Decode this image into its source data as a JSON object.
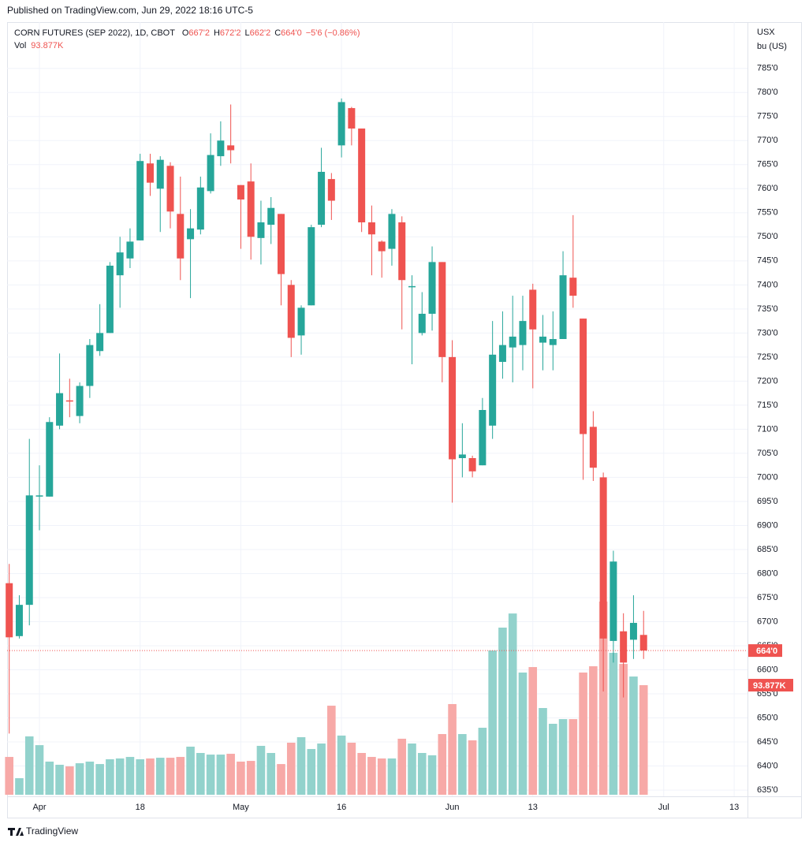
{
  "published": "Published on TradingView.com, Jun 29, 2022 18:16 UTC-5",
  "footer": "TradingView",
  "chart_data": {
    "type": "candlestick",
    "title": "CORN FUTURES (SEP 2022), 1D, CBOT",
    "ohlc_labels": [
      {
        "key": "O",
        "value": "667'2"
      },
      {
        "key": "H",
        "value": "672'2"
      },
      {
        "key": "L",
        "value": "662'2"
      },
      {
        "key": "C",
        "value": "664'0"
      }
    ],
    "change": "−5'6 (−0.86%)",
    "currency": "USX",
    "unit": "bu (US)",
    "last_price_label": "664'0",
    "up_color": "#26a69a",
    "down_color": "#ef5350",
    "up_volume_color": "#92d2cc",
    "down_volume_color": "#f7a9a7",
    "categories": [
      null,
      null,
      null,
      "Apr",
      null,
      null,
      null,
      null,
      null,
      null,
      null,
      null,
      null,
      "18",
      null,
      null,
      null,
      null,
      null,
      null,
      null,
      null,
      null,
      "May",
      null,
      null,
      null,
      null,
      null,
      null,
      null,
      null,
      null,
      "16",
      null,
      null,
      null,
      null,
      null,
      null,
      null,
      null,
      null,
      null,
      "Jun",
      null,
      null,
      null,
      null,
      null,
      null,
      null,
      "13",
      null,
      null,
      null,
      null,
      null,
      null,
      null,
      null,
      null,
      null,
      null,
      null,
      "Jul",
      null,
      null,
      null,
      null,
      null,
      null,
      "13",
      null
    ],
    "open": [
      678,
      667,
      673.5,
      696,
      696,
      710.75,
      716,
      712.75,
      719,
      726.25,
      730,
      742,
      745.5,
      749.25,
      765.25,
      760,
      764.75,
      754.75,
      749.5,
      751.5,
      759.5,
      766.75,
      769,
      760.75,
      761.5,
      749.75,
      752.5,
      754.75,
      740,
      729.5,
      735.75,
      752.5,
      762,
      769,
      776.75,
      772.5,
      753,
      749,
      747.5,
      753,
      739.5,
      730,
      734,
      744.75,
      725,
      704,
      704,
      702.5,
      710.75,
      724,
      727,
      727.5,
      739,
      728,
      727.5,
      728.75,
      741.5,
      733,
      710.5,
      700,
      666,
      668,
      666.25,
      667.25,
      null,
      null,
      null,
      null,
      null,
      null,
      null,
      null,
      null,
      null
    ],
    "high": [
      682,
      675.5,
      708,
      702.5,
      712.5,
      725.75,
      720.5,
      719.75,
      728.75,
      736,
      744.75,
      750,
      751.75,
      767.25,
      767.25,
      766.75,
      765.5,
      762.5,
      755.75,
      762.5,
      771.5,
      774,
      777.5,
      760.75,
      765.25,
      757.5,
      758.25,
      754.75,
      741,
      735.75,
      752.5,
      768.5,
      763.25,
      778.75,
      777,
      772.5,
      756.5,
      749.25,
      755.75,
      754.25,
      742,
      738.5,
      748,
      744.75,
      728.5,
      711.25,
      704.5,
      716.5,
      732.5,
      734.5,
      737.75,
      737.75,
      740.25,
      733.75,
      734.5,
      747,
      754.5,
      733,
      713.75,
      701,
      684.75,
      671.75,
      675.5,
      672.25,
      null,
      null,
      null,
      null,
      null,
      null,
      null,
      null,
      null,
      null
    ],
    "low": [
      646.75,
      666.5,
      669.25,
      689,
      696,
      710,
      712.5,
      711.25,
      716.5,
      725.25,
      730,
      735.25,
      743.5,
      749.25,
      758.5,
      751,
      751.75,
      741,
      737.25,
      750.5,
      759,
      764.75,
      765.25,
      747.5,
      745.25,
      744.25,
      748.5,
      735.75,
      725,
      725.5,
      735.75,
      752,
      753.5,
      766.5,
      769,
      751,
      742,
      741.5,
      744,
      730.75,
      723.5,
      729.5,
      730.5,
      719.75,
      694.75,
      700,
      700,
      702.5,
      708,
      720.5,
      719.75,
      722.25,
      718.5,
      722.25,
      722.25,
      728.75,
      735.25,
      699.5,
      699.25,
      655.5,
      661.5,
      654.25,
      662.25,
      662.25,
      null,
      null,
      null,
      null,
      null,
      null,
      null,
      null,
      null,
      null
    ],
    "close": [
      666.75,
      673.5,
      696.25,
      696.25,
      711.5,
      717.5,
      715.75,
      719,
      727.5,
      730,
      744,
      746.75,
      749,
      765.75,
      761.25,
      766,
      755.25,
      745.5,
      751.75,
      760.25,
      767,
      770,
      768,
      757.75,
      750,
      753,
      756,
      742.25,
      729,
      735.25,
      752,
      763.5,
      757.5,
      778,
      772.5,
      753,
      750.5,
      747,
      754.75,
      741,
      739.75,
      734,
      744.75,
      725,
      703.75,
      704.75,
      701.25,
      714,
      725.5,
      727.5,
      729.25,
      732.5,
      730.75,
      729.25,
      728.75,
      742,
      737.75,
      709,
      702,
      666.5,
      682.5,
      661.5,
      669.75,
      664,
      null,
      null,
      null,
      null,
      null,
      null,
      null,
      null,
      null,
      null
    ],
    "volume": {
      "name": "Vol",
      "values": [
        32400,
        14200,
        50000,
        42500,
        28400,
        25700,
        24300,
        27000,
        28400,
        26300,
        30400,
        31100,
        32400,
        30400,
        31100,
        31700,
        31700,
        32400,
        41200,
        35800,
        34400,
        34400,
        35100,
        28400,
        29000,
        41900,
        35800,
        26300,
        44600,
        49300,
        39200,
        43900,
        76300,
        50700,
        44600,
        35800,
        32400,
        31100,
        31100,
        48000,
        43900,
        35800,
        33800,
        52000,
        77700,
        52000,
        46600,
        57400,
        123600,
        143200,
        155300,
        104700,
        109400,
        74300,
        60800,
        64800,
        64800,
        104700,
        110100,
        165500,
        121600,
        112100,
        101300,
        93877,
        null,
        null,
        null,
        null,
        null,
        null,
        null,
        null,
        null,
        null
      ],
      "value_labels": [
        null,
        null,
        null,
        null,
        null,
        null,
        null,
        null,
        null,
        null,
        null,
        null,
        null,
        null,
        null,
        null,
        null,
        null,
        null,
        null,
        null,
        null,
        null,
        null,
        null,
        null,
        null,
        null,
        null,
        null,
        null,
        null,
        null,
        null,
        null,
        null,
        null,
        null,
        null,
        null,
        null,
        null,
        null,
        null,
        null,
        null,
        null,
        null,
        null,
        null,
        null,
        null,
        null,
        null,
        null,
        null,
        null,
        null,
        null,
        null,
        null,
        null,
        null,
        "93.877K",
        null,
        null,
        null,
        null,
        null,
        null,
        null,
        null,
        null,
        null
      ]
    },
    "ylim": [
      633.7,
      794.3
    ],
    "yticks": [
      {
        "value": 635,
        "label": "635'0"
      },
      {
        "value": 640,
        "label": "640'0"
      },
      {
        "value": 645,
        "label": "645'0"
      },
      {
        "value": 650,
        "label": "650'0"
      },
      {
        "value": 655,
        "label": "655'0"
      },
      {
        "value": 660,
        "label": "660'0"
      },
      {
        "value": 665,
        "label": "665'0"
      },
      {
        "value": 670,
        "label": "670'0"
      },
      {
        "value": 675,
        "label": "675'0"
      },
      {
        "value": 680,
        "label": "680'0"
      },
      {
        "value": 685,
        "label": "685'0"
      },
      {
        "value": 690,
        "label": "690'0"
      },
      {
        "value": 695,
        "label": "695'0"
      },
      {
        "value": 700,
        "label": "700'0"
      },
      {
        "value": 705,
        "label": "705'0"
      },
      {
        "value": 710,
        "label": "710'0"
      },
      {
        "value": 715,
        "label": "715'0"
      },
      {
        "value": 720,
        "label": "720'0"
      },
      {
        "value": 725,
        "label": "725'0"
      },
      {
        "value": 730,
        "label": "730'0"
      },
      {
        "value": 735,
        "label": "735'0"
      },
      {
        "value": 740,
        "label": "740'0"
      },
      {
        "value": 745,
        "label": "745'0"
      },
      {
        "value": 750,
        "label": "750'0"
      },
      {
        "value": 755,
        "label": "755'0"
      },
      {
        "value": 760,
        "label": "760'0"
      },
      {
        "value": 765,
        "label": "765'0"
      },
      {
        "value": 770,
        "label": "770'0"
      },
      {
        "value": 775,
        "label": "775'0"
      },
      {
        "value": 780,
        "label": "780'0"
      },
      {
        "value": 785,
        "label": "785'0"
      }
    ],
    "grid": true
  }
}
